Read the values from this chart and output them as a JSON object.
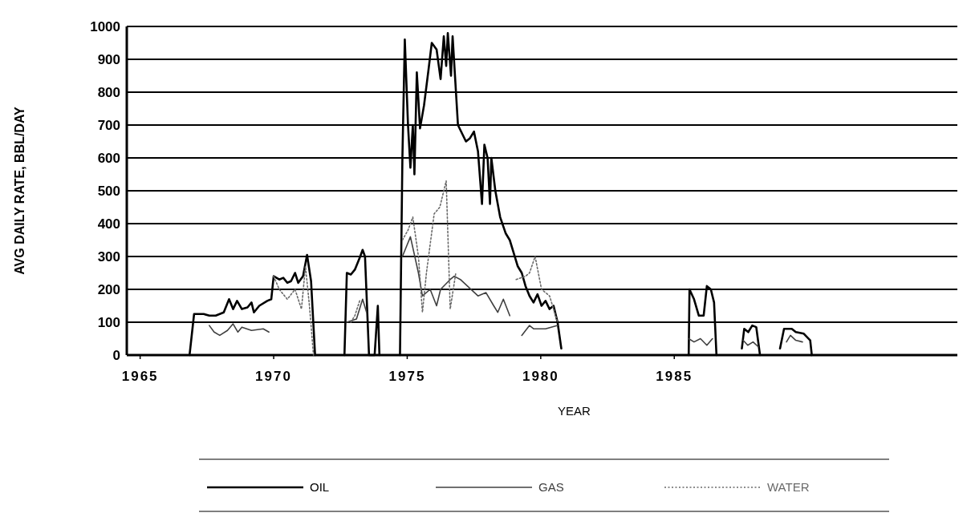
{
  "chart_data": {
    "type": "line",
    "xlabel": "YEAR",
    "ylabel": "AVG DAILY RATE, BBL/DAY",
    "xlim": [
      1964.5,
      1995.6
    ],
    "ylim": [
      0,
      1000
    ],
    "xticks": [
      1965,
      1970,
      1975,
      1980,
      1985
    ],
    "yticks": [
      0,
      100,
      200,
      300,
      400,
      500,
      600,
      700,
      800,
      900,
      1000
    ],
    "grid": "y",
    "legend": "bottom",
    "marker": "none",
    "series": [
      {
        "name": "OIL",
        "color": "#000000",
        "line_style": "solid",
        "x": [
          1966.85,
          1967.02,
          1967.38,
          1967.59,
          1967.83,
          1968.13,
          1968.33,
          1968.48,
          1968.63,
          1968.81,
          1969.02,
          1969.17,
          1969.26,
          1969.46,
          1969.76,
          1969.91,
          1970.0,
          1970.21,
          1970.36,
          1970.51,
          1970.65,
          1970.8,
          1970.92,
          1971.1,
          1971.25,
          1971.4,
          1971.55,
          1972.0,
          1972.65,
          1972.74,
          1972.89,
          1973.04,
          1973.24,
          1973.33,
          1973.42,
          1973.57,
          1973.78,
          1973.9,
          1973.96,
          1974.3,
          1974.73,
          1974.82,
          1974.91,
          1975.03,
          1975.12,
          1975.21,
          1975.27,
          1975.36,
          1975.48,
          1975.63,
          1975.8,
          1975.92,
          1976.1,
          1976.25,
          1976.37,
          1976.46,
          1976.52,
          1976.64,
          1976.7,
          1976.9,
          1977.2,
          1977.35,
          1977.5,
          1977.65,
          1977.8,
          1977.89,
          1978.01,
          1978.1,
          1978.15,
          1978.3,
          1978.48,
          1978.69,
          1978.84,
          1978.99,
          1979.14,
          1979.29,
          1979.43,
          1979.58,
          1979.73,
          1979.88,
          1980.03,
          1980.18,
          1980.33,
          1980.48,
          1980.63,
          1980.77,
          1983.0,
          1985.54,
          1985.57,
          1985.74,
          1985.92,
          1986.1,
          1986.22,
          1986.37,
          1986.49,
          1986.58,
          1987.0,
          1987.53,
          1987.62,
          1987.77,
          1987.92,
          1988.07,
          1988.21,
          1988.6,
          1988.96,
          1989.11,
          1989.4,
          1989.55,
          1989.85,
          1990.09,
          1990.15
        ],
        "values": [
          0,
          125,
          125,
          120,
          120,
          130,
          170,
          140,
          165,
          140,
          145,
          160,
          130,
          150,
          165,
          170,
          240,
          230,
          235,
          220,
          225,
          250,
          220,
          240,
          305,
          225,
          0,
          null,
          0,
          250,
          245,
          260,
          300,
          320,
          300,
          0,
          0,
          150,
          0,
          null,
          0,
          600,
          960,
          700,
          570,
          700,
          550,
          860,
          690,
          760,
          870,
          950,
          930,
          840,
          970,
          880,
          980,
          850,
          970,
          700,
          650,
          660,
          680,
          620,
          460,
          640,
          600,
          460,
          600,
          500,
          420,
          370,
          350,
          310,
          270,
          250,
          210,
          180,
          160,
          185,
          150,
          165,
          140,
          150,
          100,
          20,
          null,
          0,
          200,
          170,
          120,
          120,
          210,
          200,
          160,
          0,
          null,
          20,
          80,
          70,
          90,
          85,
          0,
          null,
          20,
          80,
          80,
          70,
          65,
          45,
          0
        ]
      },
      {
        "name": "GAS",
        "color": "#404040",
        "line_style": "solid",
        "x": [
          1967.59,
          1967.77,
          1967.98,
          1968.27,
          1968.48,
          1968.66,
          1968.81,
          1969.17,
          1969.61,
          1969.82,
          1972.0,
          1972.74,
          1973.1,
          1973.33,
          1973.48,
          1974.5,
          1974.82,
          1975.12,
          1975.42,
          1975.57,
          1975.86,
          1976.1,
          1976.25,
          1976.61,
          1976.76,
          1976.99,
          1977.65,
          1977.95,
          1978.24,
          1978.39,
          1978.6,
          1978.84,
          1979.0,
          1979.29,
          1979.58,
          1979.73,
          1980.18,
          1980.63,
          1983.0,
          1985.54,
          1985.74,
          1985.98,
          1986.22,
          1986.43,
          1987.0,
          1987.58,
          1987.75,
          1987.95,
          1988.15,
          1988.6,
          1989.2,
          1989.35,
          1989.55,
          1989.8
        ],
        "values": [
          90,
          70,
          60,
          75,
          95,
          70,
          85,
          75,
          80,
          70,
          null,
          100,
          110,
          170,
          130,
          null,
          300,
          360,
          250,
          180,
          200,
          150,
          200,
          230,
          240,
          230,
          180,
          190,
          150,
          130,
          170,
          120,
          null,
          60,
          90,
          80,
          80,
          90,
          null,
          50,
          40,
          50,
          30,
          50,
          null,
          45,
          30,
          40,
          25,
          null,
          40,
          60,
          45,
          40
        ]
      },
      {
        "name": "WATER",
        "color": "#6a6a6a",
        "line_style": "dotted",
        "x": [
          1970.0,
          1970.21,
          1970.51,
          1970.8,
          1971.04,
          1971.19,
          1971.34,
          1971.49,
          1972.0,
          1972.89,
          1973.04,
          1973.24,
          1974.5,
          1974.82,
          1975.03,
          1975.21,
          1975.42,
          1975.57,
          1975.72,
          1976.01,
          1976.22,
          1976.46,
          1976.61,
          1976.82,
          1977.5,
          1979.08,
          1979.43,
          1979.58,
          1979.79,
          1980.03,
          1980.33,
          1980.63
        ],
        "values": [
          240,
          200,
          170,
          200,
          140,
          270,
          150,
          0,
          null,
          100,
          120,
          170,
          null,
          350,
          380,
          420,
          300,
          130,
          250,
          430,
          450,
          530,
          140,
          250,
          null,
          230,
          240,
          250,
          300,
          200,
          180,
          100
        ]
      }
    ]
  }
}
